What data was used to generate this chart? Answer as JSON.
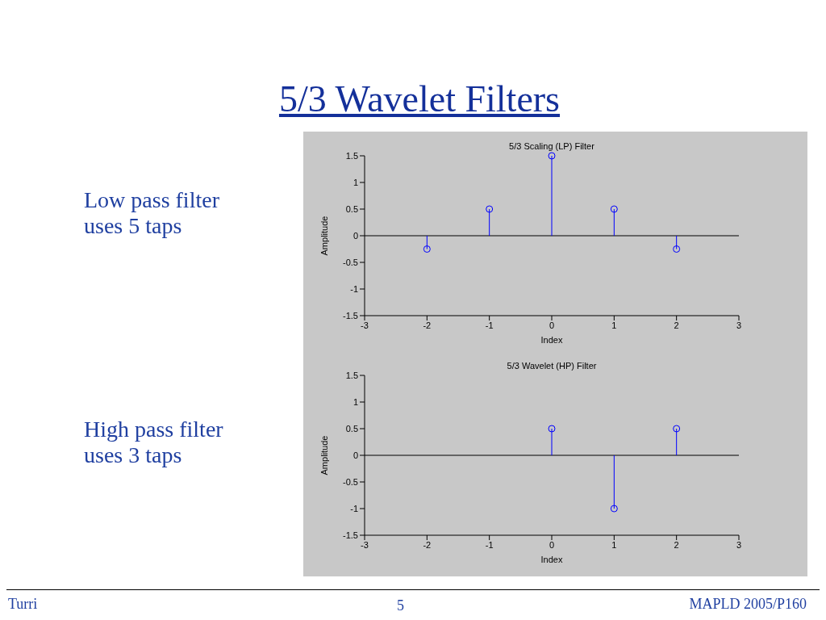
{
  "chart_data": [
    {
      "type": "lollipop",
      "title": "5/3 Scaling (LP) Filter",
      "xlabel": "Index",
      "ylabel": "Amplitude",
      "x": [
        -2,
        -1,
        0,
        1,
        2
      ],
      "values": [
        -0.25,
        0.5,
        1.5,
        0.5,
        -0.25
      ],
      "color": "#0000ff",
      "marker": "circle",
      "xlim": [
        -3,
        3
      ],
      "xticks": [
        -3,
        -2,
        -1,
        0,
        1,
        2,
        3
      ],
      "ylim": [
        -1.5,
        1.5
      ],
      "yticks": [
        -1.5,
        -1,
        -0.5,
        0,
        0.5,
        1,
        1.5
      ],
      "ref_lines": [
        {
          "axis": "y",
          "value": 0,
          "color": "#000000"
        }
      ],
      "annotations": [
        "5/3 Wavelet Filters",
        "Low pass filter uses 5 taps",
        "Turri",
        "5",
        "MAPLD 2005/P160"
      ]
    },
    {
      "type": "lollipop",
      "title": "5/3 Wavelet (HP) Filter",
      "xlabel": "Index",
      "ylabel": "Amplitude",
      "x": [
        0,
        1,
        2
      ],
      "values": [
        0.5,
        -1,
        0.5
      ],
      "color": "#0000ff",
      "marker": "circle",
      "xlim": [
        -3,
        3
      ],
      "xticks": [
        -3,
        -2,
        -1,
        0,
        1,
        2,
        3
      ],
      "ylim": [
        -1.5,
        1.5
      ],
      "yticks": [
        -1.5,
        -1,
        -0.5,
        0,
        0.5,
        1,
        1.5
      ],
      "ref_lines": [
        {
          "axis": "y",
          "value": 0,
          "color": "#000000"
        }
      ],
      "annotations": [
        "High pass filter uses 3 taps"
      ]
    }
  ]
}
